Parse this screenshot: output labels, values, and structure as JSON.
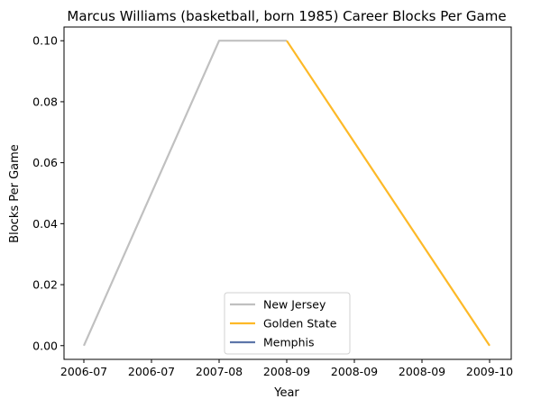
{
  "chart_data": {
    "type": "line",
    "title": "Marcus Williams (basketball, born 1985) Career Blocks Per Game",
    "xlabel": "Year",
    "ylabel": "Blocks Per Game",
    "x_tick_labels": [
      "2006-07",
      "2006-07",
      "2007-08",
      "2008-09",
      "2008-09",
      "2008-09",
      "2009-10"
    ],
    "y_tick_labels": [
      "0.00",
      "0.02",
      "0.04",
      "0.06",
      "0.08",
      "0.10"
    ],
    "ylim": [
      -0.0045,
      0.1045
    ],
    "grid": false,
    "legend_placement": "lower center",
    "series": [
      {
        "name": "New Jersey",
        "color": "#c0c0c0",
        "points": [
          [
            "2006-07",
            0.0
          ],
          [
            "2007-08",
            0.1
          ],
          [
            "2008-09",
            0.1
          ]
        ]
      },
      {
        "name": "Golden State",
        "color": "#fdb927",
        "points": [
          [
            "2008-09",
            0.1
          ],
          [
            "2009-10",
            0.0
          ]
        ]
      },
      {
        "name": "Memphis",
        "color": "#5d76a9",
        "points": []
      }
    ]
  }
}
